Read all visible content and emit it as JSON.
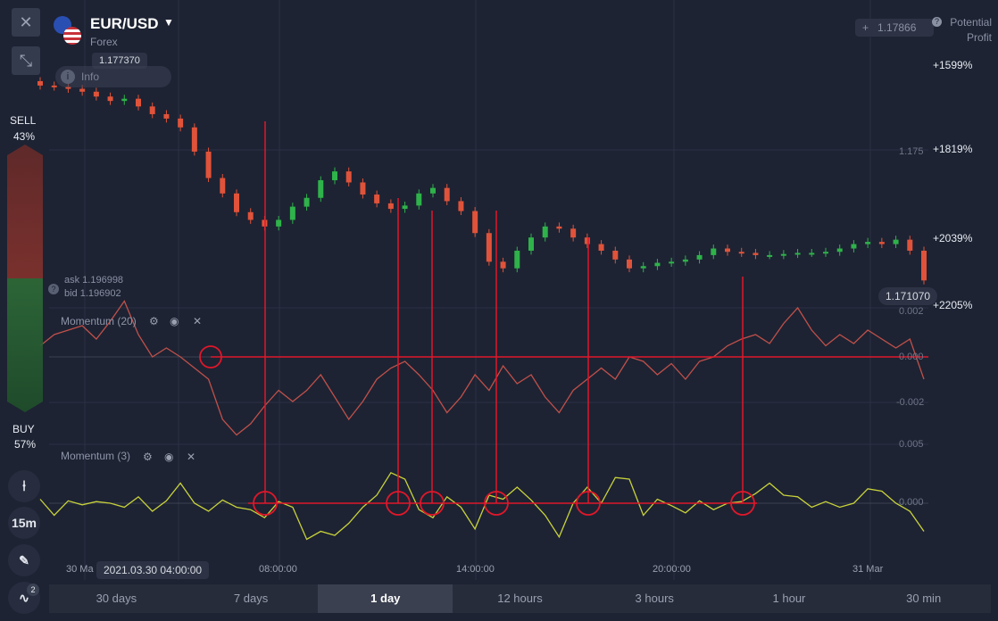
{
  "header": {
    "pair": "EUR/USD",
    "market": "Forex",
    "current_price_tag": "1.177370",
    "info_label": "Info"
  },
  "sidebar": {
    "sell_label": "SELL",
    "sell_pct": "43%",
    "buy_label": "BUY",
    "buy_pct": "57%",
    "timeframe_button": "15m",
    "indicator_count": "2"
  },
  "quote": {
    "ask": "ask 1.196998",
    "bid": "bid 1.196902"
  },
  "price_axis": {
    "top_price": "1.17866",
    "mid_price": "1.175",
    "last_price": "1.171070"
  },
  "potential_profit": {
    "title_line1": "Potential",
    "title_line2": "Profit",
    "levels": [
      "+1599%",
      "+1819%",
      "+2039%",
      "+2205%"
    ]
  },
  "indicators": [
    {
      "name": "Momentum (20)",
      "levels": [
        "0.002",
        "0.000",
        "-0.002"
      ]
    },
    {
      "name": "Momentum (3)",
      "levels": [
        "0.005",
        "0.000"
      ]
    }
  ],
  "x_axis": {
    "labels": [
      "30 Ma",
      "08:00:00",
      "14:00:00",
      "20:00:00",
      "31 Mar"
    ],
    "cursor_time": "2021.03.30 04:00:00"
  },
  "timeframes": [
    {
      "label": "30 days",
      "active": false
    },
    {
      "label": "7 days",
      "active": false
    },
    {
      "label": "1 day",
      "active": true
    },
    {
      "label": "12 hours",
      "active": false
    },
    {
      "label": "3 hours",
      "active": false
    },
    {
      "label": "1 hour",
      "active": false
    },
    {
      "label": "30 min",
      "active": false
    }
  ],
  "colors": {
    "bull": "#2fb24a",
    "bear": "#e0533a",
    "annotation": "#e0172a",
    "momentum20": "#c0504a",
    "momentum3": "#c9d23a",
    "sell_gradient": "#8a2d28",
    "buy_gradient": "#2e7d3a"
  },
  "chart_data": [
    {
      "type": "candlestick",
      "series": [
        {
          "name": "EUR/USD"
        }
      ],
      "close": [
        1.1775,
        1.17745,
        1.17735,
        1.17722,
        1.177,
        1.1768,
        1.1769,
        1.17655,
        1.1762,
        1.176,
        1.1756,
        1.1745,
        1.1733,
        1.1726,
        1.17175,
        1.1714,
        1.1711,
        1.1714,
        1.172,
        1.1724,
        1.1732,
        1.1736,
        1.1731,
        1.17255,
        1.17215,
        1.1719,
        1.17205,
        1.1726,
        1.17285,
        1.17225,
        1.1718,
        1.1708,
        1.1695,
        1.1692,
        1.17,
        1.1706,
        1.1711,
        1.171,
        1.1706,
        1.1703,
        1.17,
        1.1696,
        1.1692,
        1.1693,
        1.16945,
        1.1695,
        1.1696,
        1.1698,
        1.1701,
        1.16995,
        1.1699,
        1.1698,
        1.1698,
        1.16985,
        1.1699,
        1.1699,
        1.16995,
        1.1701,
        1.1703,
        1.1704,
        1.1703,
        1.1705,
        1.17,
        1.16865
      ]
    },
    {
      "type": "line",
      "series": [
        {
          "name": "Momentum (20)"
        }
      ],
      "y": [
        0.0005,
        0.001,
        0.0012,
        0.0014,
        0.0008,
        0.0016,
        0.0025,
        0.001,
        0.0,
        0.0004,
        0.0,
        -0.0005,
        -0.001,
        -0.0028,
        -0.0035,
        -0.003,
        -0.0022,
        -0.0015,
        -0.002,
        -0.0015,
        -0.0008,
        -0.0018,
        -0.0028,
        -0.002,
        -0.001,
        -0.0005,
        -0.0002,
        -0.0008,
        -0.0015,
        -0.0025,
        -0.0018,
        -0.0008,
        -0.0015,
        -0.0004,
        -0.0012,
        -0.0008,
        -0.0018,
        -0.0025,
        -0.0015,
        -0.001,
        -0.0005,
        -0.001,
        0.0,
        -0.0002,
        -0.0008,
        -0.0003,
        -0.001,
        -0.0002,
        0.0,
        0.0005,
        0.0008,
        0.001,
        0.0006,
        0.0015,
        0.0022,
        0.0012,
        0.0005,
        0.001,
        0.0006,
        0.0012,
        0.0008,
        0.0004,
        0.0008,
        -0.001
      ]
    },
    {
      "type": "line",
      "series": [
        {
          "name": "Momentum (3)"
        }
      ],
      "y": [
        0.0005,
        -0.0015,
        0.0003,
        -0.0002,
        0.0002,
        0.0,
        -0.0005,
        0.0008,
        -0.001,
        0.0003,
        0.0025,
        0.0,
        -0.001,
        0.0004,
        -0.0005,
        -0.0008,
        -0.0018,
        0.0002,
        -0.0005,
        -0.0045,
        -0.0035,
        -0.004,
        -0.0025,
        -0.0005,
        0.001,
        0.0038,
        0.003,
        -0.0008,
        -0.0018,
        0.0008,
        -0.0005,
        -0.0032,
        0.001,
        0.0005,
        0.002,
        0.0004,
        -0.0015,
        -0.0042,
        0.0,
        0.002,
        0.0,
        0.0032,
        0.003,
        -0.0015,
        0.0005,
        -0.0003,
        -0.0012,
        0.0003,
        -0.0008,
        0.0,
        0.0002,
        0.0012,
        0.0025,
        0.001,
        0.0008,
        -0.0005,
        0.0002,
        -0.0005,
        0.0,
        0.0018,
        0.0015,
        0.0,
        -0.001,
        -0.0035
      ]
    }
  ]
}
